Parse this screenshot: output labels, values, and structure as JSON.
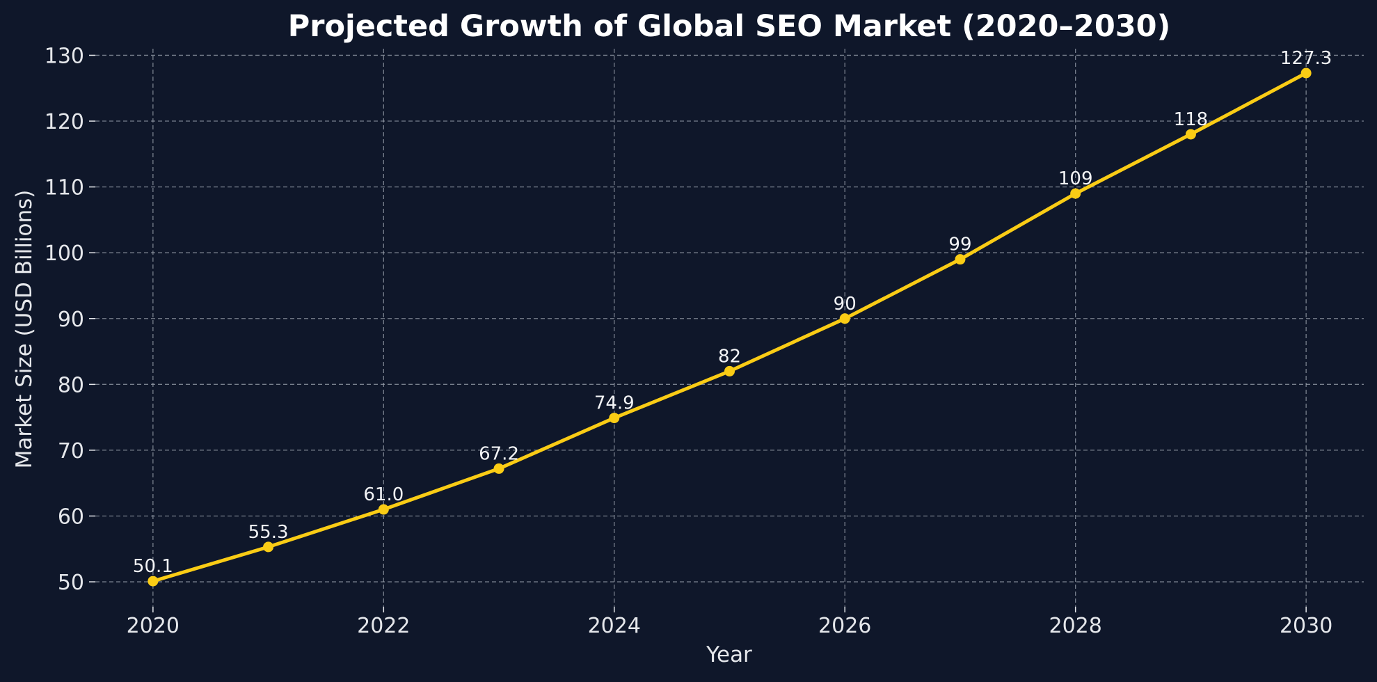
{
  "chart_data": {
    "type": "line",
    "title": "Projected Growth of Global SEO Market (2020–2030)",
    "xlabel": "Year",
    "ylabel": "Market Size (USD Billions)",
    "x": [
      2020,
      2021,
      2022,
      2023,
      2024,
      2025,
      2026,
      2027,
      2028,
      2029,
      2030
    ],
    "series": [
      {
        "values": [
          50.1,
          55.3,
          61.0,
          67.2,
          74.9,
          82,
          90,
          99,
          109,
          118,
          127.3
        ],
        "data_labels": [
          "50.1",
          "55.3",
          "61.0",
          "67.2",
          "74.9",
          "82",
          "90",
          "99",
          "109",
          "118",
          "127.3"
        ],
        "color": "#facc15"
      }
    ],
    "x_ticks": [
      "2020",
      "2022",
      "2024",
      "2026",
      "2028",
      "2030"
    ],
    "y_ticks": [
      "50",
      "60",
      "70",
      "80",
      "90",
      "100",
      "110",
      "120",
      "130"
    ],
    "xlim": [
      2019.5,
      2030.5
    ],
    "ylim": [
      46.2,
      131.0
    ],
    "grid": true,
    "background_color": "#0f172a",
    "marker": "circle"
  }
}
